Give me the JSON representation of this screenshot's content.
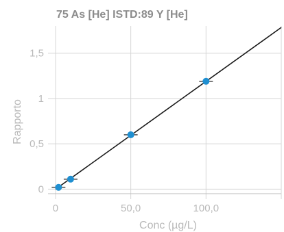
{
  "chart_data": {
    "type": "scatter",
    "title": "75 As [He] ISTD:89 Y [He]",
    "xlabel": "Conc (µg/L)",
    "ylabel": "Rapporto",
    "xlim": [
      -5,
      150
    ],
    "ylim": [
      -0.05,
      1.8
    ],
    "x_ticks": [
      {
        "value": 0,
        "label": "0"
      },
      {
        "value": 50,
        "label": "50,0"
      },
      {
        "value": 100,
        "label": "100,0"
      }
    ],
    "y_ticks": [
      {
        "value": 0,
        "label": "0"
      },
      {
        "value": 0.5,
        "label": "0,5"
      },
      {
        "value": 1,
        "label": "1"
      },
      {
        "value": 1.5,
        "label": "1,5"
      }
    ],
    "grid": true,
    "legend": "none",
    "series": [
      {
        "x": [
          2,
          10,
          50,
          100
        ],
        "y": [
          0.02,
          0.11,
          0.6,
          1.19
        ],
        "color": "#1f8fd1"
      }
    ],
    "fit_line": {
      "slope": 0.0119,
      "intercept": -0.001,
      "color": "#1a1a1a"
    }
  }
}
